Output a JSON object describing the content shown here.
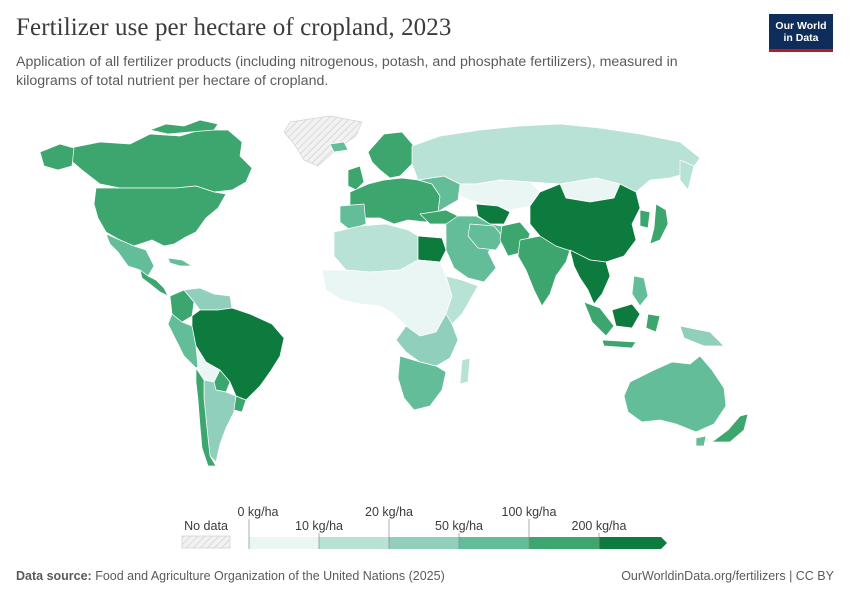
{
  "header": {
    "title": "Fertilizer use per hectare of cropland, 2023",
    "subtitle": "Application of all fertilizer products (including nitrogenous, potash, and phosphate fertilizers), measured in kilograms of total nutrient per hectare of cropland.",
    "logo_line1": "Our World",
    "logo_line2": "in Data"
  },
  "colors": {
    "no_data": "#e8e8e8",
    "bin_0_10": "#eaf6f3",
    "bin_10_20": "#b9e2d6",
    "bin_20_50": "#8fcfbb",
    "bin_50_100": "#63bd98",
    "bin_100_200": "#3ca66e",
    "bin_200_plus": "#0d7a3e"
  },
  "legend": {
    "no_data_label": "No data",
    "top_labels": [
      "0 kg/ha",
      "20 kg/ha",
      "100 kg/ha"
    ],
    "bottom_labels": [
      "10 kg/ha",
      "50 kg/ha",
      "200 kg/ha"
    ]
  },
  "regions": [
    {
      "name": "Greenland",
      "bin": "no_data"
    },
    {
      "name": "Canada",
      "bin": "100_200"
    },
    {
      "name": "United States",
      "bin": "100_200"
    },
    {
      "name": "Mexico",
      "bin": "50_100"
    },
    {
      "name": "Central America",
      "bin": "100_200"
    },
    {
      "name": "Colombia",
      "bin": "100_200"
    },
    {
      "name": "Venezuela",
      "bin": "20_50"
    },
    {
      "name": "Peru",
      "bin": "50_100"
    },
    {
      "name": "Brazil",
      "bin": "200_plus"
    },
    {
      "name": "Bolivia",
      "bin": "0_10"
    },
    {
      "name": "Argentina",
      "bin": "20_50"
    },
    {
      "name": "Chile",
      "bin": "100_200"
    },
    {
      "name": "Europe",
      "bin": "100_200"
    },
    {
      "name": "Russia",
      "bin": "10_20"
    },
    {
      "name": "Kazakhstan",
      "bin": "0_10"
    },
    {
      "name": "North Africa",
      "bin": "10_20"
    },
    {
      "name": "Egypt",
      "bin": "200_plus"
    },
    {
      "name": "West and Central Africa",
      "bin": "0_10"
    },
    {
      "name": "East Africa",
      "bin": "10_20"
    },
    {
      "name": "Southern Africa",
      "bin": "50_100"
    },
    {
      "name": "Middle East",
      "bin": "50_100"
    },
    {
      "name": "India",
      "bin": "100_200"
    },
    {
      "name": "China",
      "bin": "200_plus"
    },
    {
      "name": "Mongolia",
      "bin": "0_10"
    },
    {
      "name": "Japan and Korea",
      "bin": "100_200"
    },
    {
      "name": "Southeast Asia",
      "bin": "200_plus"
    },
    {
      "name": "Indonesia",
      "bin": "100_200"
    },
    {
      "name": "Australia",
      "bin": "50_100"
    },
    {
      "name": "New Zealand",
      "bin": "100_200"
    }
  ],
  "footer": {
    "source_label": "Data source:",
    "source_text": "Food and Agriculture Organization of the United Nations (2025)",
    "right_text": "OurWorldinData.org/fertilizers | CC BY"
  }
}
